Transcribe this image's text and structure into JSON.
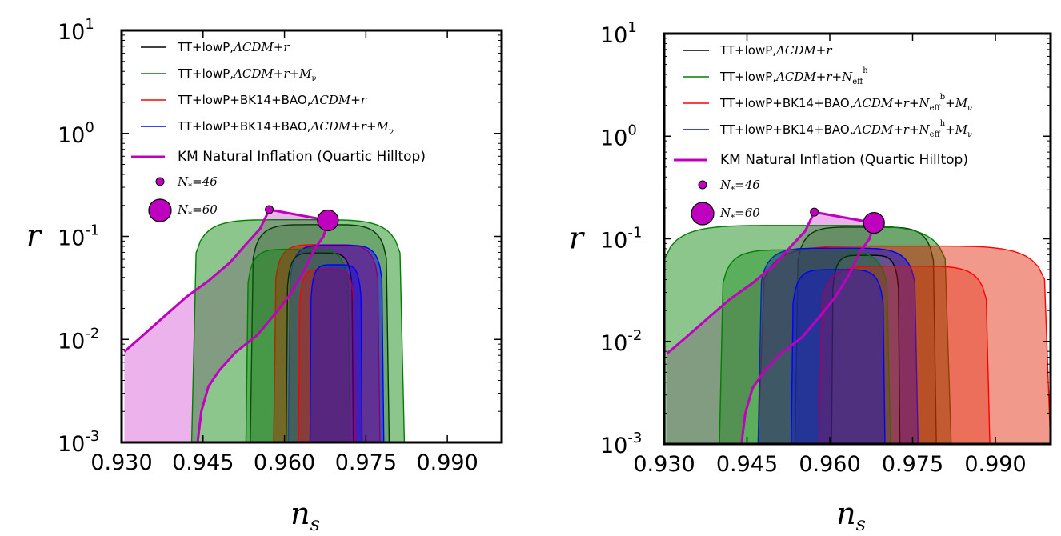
{
  "chart_data": [
    {
      "type": "contour",
      "xlabel": "n",
      "xlabel_sub": "s",
      "ylabel": "r",
      "xlim": [
        0.93,
        1.0
      ],
      "ylim": [
        0.001,
        10
      ],
      "yscale": "log",
      "xticks": [
        "0.930",
        "0.945",
        "0.960",
        "0.975",
        "0.990"
      ],
      "xtick_values": [
        0.93,
        0.945,
        0.96,
        0.975,
        0.99
      ],
      "yticks": [
        {
          "base": "10",
          "exp": "1",
          "value": 10
        },
        {
          "base": "10",
          "exp": "0",
          "value": 1
        },
        {
          "base": "10",
          "exp": "-1",
          "value": 0.1
        },
        {
          "base": "10",
          "exp": "-2",
          "value": 0.01
        },
        {
          "base": "10",
          "exp": "-3",
          "value": 0.001
        }
      ],
      "legend_position": "upper-left",
      "series": [
        {
          "name": "TT+lowP,ΛCDM+r",
          "parts": [
            {
              "t": "TT+lowP,"
            },
            {
              "t": "ΛCDM",
              "m": 1
            },
            {
              "t": "+"
            },
            {
              "t": "r",
              "m": 1
            }
          ],
          "color": "#000000",
          "fill": "#808080",
          "alpha": 0.5,
          "xc": 0.9665,
          "hw68": 0.0062,
          "hw95": 0.0128,
          "top68": 0.069,
          "top95": 0.13
        },
        {
          "name": "TT+lowP,ΛCDM+r+Mν",
          "parts": [
            {
              "t": "TT+lowP,"
            },
            {
              "t": "ΛCDM",
              "m": 1
            },
            {
              "t": "+"
            },
            {
              "t": "r",
              "m": 1
            },
            {
              "t": "+"
            },
            {
              "t": "M",
              "m": 1
            },
            {
              "t": "ν",
              "sub": 1
            }
          ],
          "color": "#007f00",
          "fill": "#008000",
          "alpha": 0.5,
          "xc": 0.9625,
          "hw68": 0.0096,
          "hw95": 0.0196,
          "top68": 0.075,
          "top95": 0.145
        },
        {
          "name": "TT+lowP+BK14+BAO,ΛCDM+r",
          "parts": [
            {
              "t": "TT+lowP+BK14+BAO,"
            },
            {
              "t": "ΛCDM",
              "m": 1
            },
            {
              "t": "+"
            },
            {
              "t": "r",
              "m": 1
            }
          ],
          "color": "#ff0000",
          "fill": "#ff0000",
          "alpha": 0.5,
          "xc": 0.9678,
          "hw68": 0.0052,
          "hw95": 0.0098,
          "top68": 0.048,
          "top95": 0.083
        },
        {
          "name": "TT+lowP+BK14+BAO,ΛCDM+r+Mν",
          "parts": [
            {
              "t": "TT+lowP+BK14+BAO,"
            },
            {
              "t": "ΛCDM",
              "m": 1
            },
            {
              "t": "+"
            },
            {
              "t": "r",
              "m": 1
            },
            {
              "t": "+"
            },
            {
              "t": "M",
              "m": 1
            },
            {
              "t": "ν",
              "sub": 1
            }
          ],
          "color": "#0000ff",
          "fill": "#0000ff",
          "alpha": 0.5,
          "xc": 0.9695,
          "hw68": 0.0048,
          "hw95": 0.0088,
          "top68": 0.053,
          "top95": 0.082
        }
      ],
      "model": {
        "name": "KM Natural Inflation (Quartic Hilltop)",
        "color": "#bf00bf",
        "fill_alpha": 0.3,
        "n46_label": "N",
        "n46_sub": "*",
        "n46_value": "=46",
        "n60_label": "N",
        "n60_sub": "*",
        "n60_value": "=60",
        "curve_n46": [
          [
            0.9305,
            0.0076
          ],
          [
            0.934,
            0.011
          ],
          [
            0.938,
            0.017
          ],
          [
            0.942,
            0.026
          ],
          [
            0.946,
            0.037
          ],
          [
            0.95,
            0.056
          ],
          [
            0.953,
            0.085
          ],
          [
            0.9555,
            0.118
          ],
          [
            0.9572,
            0.182
          ]
        ],
        "curve_n60": [
          [
            0.944,
            0.001
          ],
          [
            0.9447,
            0.002
          ],
          [
            0.946,
            0.0035
          ],
          [
            0.948,
            0.005
          ],
          [
            0.951,
            0.0075
          ],
          [
            0.955,
            0.011
          ],
          [
            0.958,
            0.017
          ],
          [
            0.961,
            0.027
          ],
          [
            0.9635,
            0.045
          ],
          [
            0.9655,
            0.075
          ],
          [
            0.9672,
            0.1
          ],
          [
            0.968,
            0.143
          ]
        ],
        "point_n46": [
          0.9572,
          0.182
        ],
        "point_n60": [
          0.968,
          0.143
        ]
      }
    },
    {
      "type": "contour",
      "xlabel": "n",
      "xlabel_sub": "s",
      "ylabel": "r",
      "xlim": [
        0.93,
        1.0
      ],
      "ylim": [
        0.001,
        10
      ],
      "yscale": "log",
      "xticks": [
        "0.930",
        "0.945",
        "0.960",
        "0.975",
        "0.990"
      ],
      "xtick_values": [
        0.93,
        0.945,
        0.96,
        0.975,
        0.99
      ],
      "yticks": [
        {
          "base": "10",
          "exp": "1",
          "value": 10
        },
        {
          "base": "10",
          "exp": "0",
          "value": 1
        },
        {
          "base": "10",
          "exp": "-1",
          "value": 0.1
        },
        {
          "base": "10",
          "exp": "-2",
          "value": 0.01
        },
        {
          "base": "10",
          "exp": "-3",
          "value": 0.001
        }
      ],
      "legend_position": "upper-left",
      "series": [
        {
          "name": "TT+lowP,ΛCDM+r",
          "parts": [
            {
              "t": "TT+lowP,"
            },
            {
              "t": "ΛCDM",
              "m": 1
            },
            {
              "t": "+"
            },
            {
              "t": "r",
              "m": 1
            }
          ],
          "color": "#000000",
          "fill": "#808080",
          "alpha": 0.5,
          "xc": 0.9665,
          "hw68": 0.0062,
          "hw95": 0.0128,
          "top68": 0.069,
          "top95": 0.13
        },
        {
          "name": "TT+lowP,ΛCDM+r+N_eff^h",
          "parts": [
            {
              "t": "TT+lowP,"
            },
            {
              "t": "ΛCDM",
              "m": 1
            },
            {
              "t": "+"
            },
            {
              "t": "r",
              "m": 1
            },
            {
              "t": "+"
            },
            {
              "t": "N",
              "m": 1
            },
            {
              "t": "eff",
              "sub": 1
            },
            {
              "t": "h",
              "sup": 1
            }
          ],
          "color": "#007f00",
          "fill": "#008000",
          "alpha": 0.5,
          "xc": 0.9555,
          "hw68": 0.0155,
          "hw95": 0.0265,
          "top68": 0.078,
          "top95": 0.135
        },
        {
          "name": "TT+lowP+BK14+BAO,ΛCDM+r+N_eff^b+Mν",
          "parts": [
            {
              "t": "TT+lowP+BK14+BAO,"
            },
            {
              "t": "ΛCDM",
              "m": 1
            },
            {
              "t": "+"
            },
            {
              "t": "r",
              "m": 1
            },
            {
              "t": "+"
            },
            {
              "t": "N",
              "m": 1
            },
            {
              "t": "eff",
              "sub": 1
            },
            {
              "t": "b",
              "sup": 1
            },
            {
              "t": "+"
            },
            {
              "t": "M",
              "m": 1
            },
            {
              "t": "ν",
              "sub": 1
            }
          ],
          "color": "#ff0000",
          "fill": "#e02000",
          "alpha": 0.5,
          "xc": 0.9735,
          "hw68": 0.0155,
          "hw95": 0.0265,
          "top68": 0.054,
          "top95": 0.085
        },
        {
          "name": "TT+lowP+BK14+BAO,ΛCDM+r+N_eff^h+Mν",
          "parts": [
            {
              "t": "TT+lowP+BK14+BAO,"
            },
            {
              "t": "ΛCDM",
              "m": 1
            },
            {
              "t": "+"
            },
            {
              "t": "r",
              "m": 1
            },
            {
              "t": "+"
            },
            {
              "t": "N",
              "m": 1
            },
            {
              "t": "eff",
              "sub": 1
            },
            {
              "t": "h",
              "sup": 1
            },
            {
              "t": "+"
            },
            {
              "t": "M",
              "m": 1
            },
            {
              "t": "ν",
              "sub": 1
            }
          ],
          "color": "#0000ff",
          "fill": "#0000ff",
          "alpha": 0.5,
          "xc": 0.9615,
          "hw68": 0.0085,
          "hw95": 0.0145,
          "top68": 0.05,
          "top95": 0.081
        }
      ],
      "model": {
        "name": "KM Natural Inflation (Quartic Hilltop)",
        "color": "#bf00bf",
        "fill_alpha": 0.3,
        "n46_label": "N",
        "n46_sub": "*",
        "n46_value": "=46",
        "n60_label": "N",
        "n60_sub": "*",
        "n60_value": "=60",
        "curve_n46": [
          [
            0.9305,
            0.0076
          ],
          [
            0.934,
            0.011
          ],
          [
            0.938,
            0.017
          ],
          [
            0.942,
            0.026
          ],
          [
            0.946,
            0.037
          ],
          [
            0.95,
            0.056
          ],
          [
            0.953,
            0.085
          ],
          [
            0.9555,
            0.118
          ],
          [
            0.9572,
            0.182
          ]
        ],
        "curve_n60": [
          [
            0.944,
            0.001
          ],
          [
            0.9447,
            0.002
          ],
          [
            0.946,
            0.0035
          ],
          [
            0.948,
            0.005
          ],
          [
            0.951,
            0.0075
          ],
          [
            0.955,
            0.011
          ],
          [
            0.958,
            0.017
          ],
          [
            0.961,
            0.027
          ],
          [
            0.9635,
            0.045
          ],
          [
            0.9655,
            0.075
          ],
          [
            0.9672,
            0.1
          ],
          [
            0.968,
            0.143
          ]
        ],
        "point_n46": [
          0.9572,
          0.182
        ],
        "point_n60": [
          0.968,
          0.143
        ]
      }
    }
  ]
}
